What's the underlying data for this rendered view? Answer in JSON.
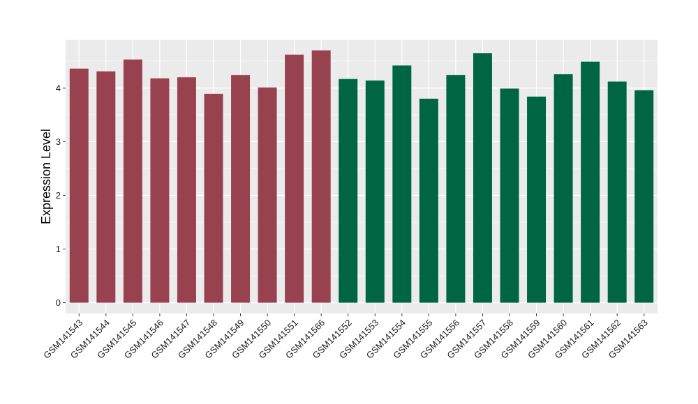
{
  "chart_data": {
    "type": "bar",
    "title": "",
    "xlabel": "",
    "ylabel": "Expression Level",
    "ylim": [
      -0.2,
      4.9
    ],
    "yticks": [
      0,
      1,
      2,
      3,
      4
    ],
    "grid": true,
    "legend": "none",
    "background_color": "#ebebeb",
    "grid_color": "#ffffff",
    "categories": [
      "GSM141543",
      "GSM141544",
      "GSM141545",
      "GSM141546",
      "GSM141547",
      "GSM141548",
      "GSM141549",
      "GSM141550",
      "GSM141551",
      "GSM141566",
      "GSM141552",
      "GSM141553",
      "GSM141554",
      "GSM141555",
      "GSM141556",
      "GSM141557",
      "GSM141558",
      "GSM141559",
      "GSM141560",
      "GSM141561",
      "GSM141562",
      "GSM141563"
    ],
    "values": [
      4.36,
      4.31,
      4.53,
      4.18,
      4.2,
      3.89,
      4.24,
      4.01,
      4.62,
      4.7,
      4.17,
      4.14,
      4.42,
      3.8,
      4.24,
      4.65,
      3.99,
      3.84,
      4.26,
      4.49,
      4.12,
      3.96
    ],
    "bar_colors": [
      "#99424f",
      "#99424f",
      "#99424f",
      "#99424f",
      "#99424f",
      "#99424f",
      "#99424f",
      "#99424f",
      "#99424f",
      "#99424f",
      "#006543",
      "#006543",
      "#006543",
      "#006543",
      "#006543",
      "#006543",
      "#006543",
      "#006543",
      "#006543",
      "#006543",
      "#006543",
      "#006543"
    ]
  }
}
